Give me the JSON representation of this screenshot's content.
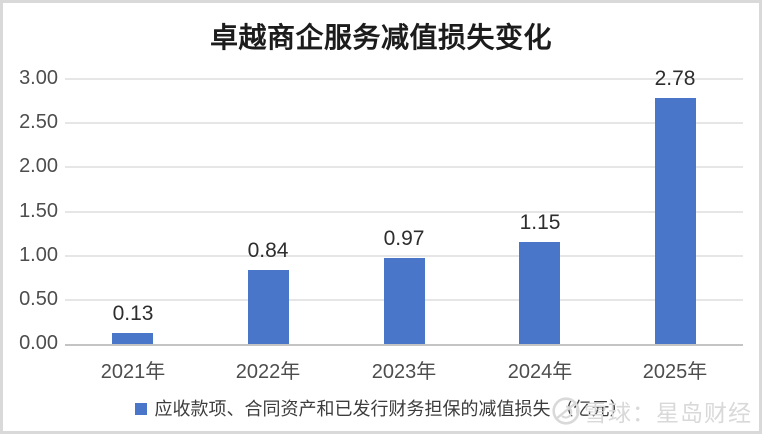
{
  "frame": {
    "background": "#ffffff",
    "border_color": "#d9d9d9"
  },
  "chart_data": {
    "type": "bar",
    "title": "卓越商企服务减值损失变化",
    "categories": [
      "2021年",
      "2022年",
      "2023年",
      "2024年",
      "2025年"
    ],
    "values": [
      0.13,
      0.84,
      0.97,
      1.15,
      2.78
    ],
    "data_labels": [
      "0.13",
      "0.84",
      "0.97",
      "1.15",
      "2.78"
    ],
    "series": [
      {
        "name": "应收款项、合同资产和已发行财务担保的减值损失",
        "values": [
          0.13,
          0.84,
          0.97,
          1.15,
          2.78
        ]
      }
    ],
    "legend_label": "应收款项、合同资产和已发行财务担保的减值损失 （亿元）",
    "legend_position": "bottom",
    "xlabel": "",
    "ylabel": "",
    "ylim": [
      0,
      3.0
    ],
    "ytick_step": 0.5,
    "ytick_labels": [
      "3.00",
      "2.50",
      "2.00",
      "1.50",
      "1.00",
      "0.50",
      "0.00"
    ],
    "grid": true,
    "bar_color": "#4a76c9"
  },
  "watermark": {
    "icon": "snowball-logo",
    "text": "雪球：星岛财经",
    "color": "#d9d9d9"
  },
  "text_colors": {
    "title": "#1c1c1c",
    "axis_labels": "#4d4d4d",
    "data_labels": "#2d2d2d",
    "legend": "#3d3d3d"
  }
}
